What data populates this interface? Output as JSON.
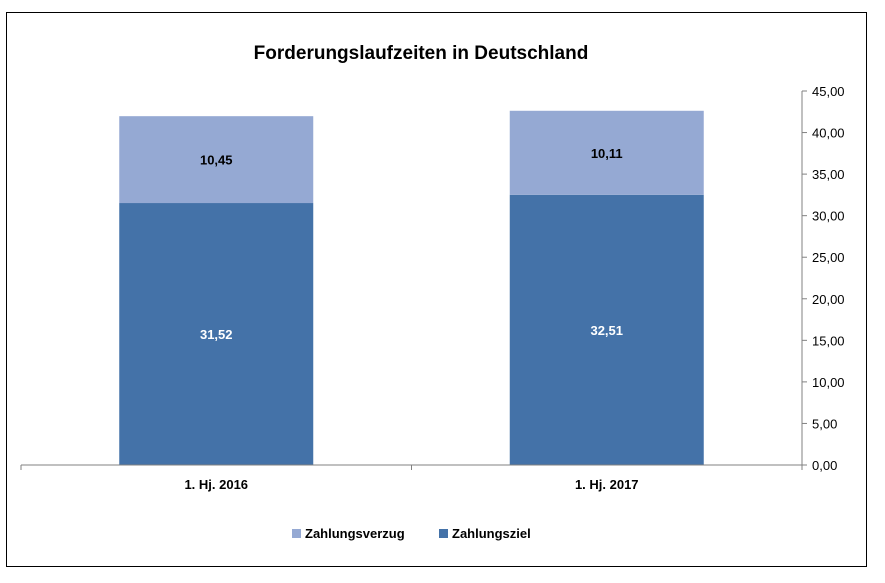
{
  "chart_data": {
    "type": "bar",
    "stacked": true,
    "title": "Forderungslaufzeiten in Deutschland",
    "categories": [
      "1. Hj. 2016",
      "1. Hj. 2017"
    ],
    "series": [
      {
        "name": "Zahlungsziel",
        "values": [
          31.52,
          32.51
        ],
        "labels": [
          "31,52",
          "32,51"
        ],
        "color": "#4472a8",
        "label_color": "#ffffff"
      },
      {
        "name": "Zahlungsverzug",
        "values": [
          10.45,
          10.11
        ],
        "labels": [
          "10,45",
          "10,11"
        ],
        "color": "#95a9d3",
        "label_color": "#000000"
      }
    ],
    "ylim": [
      0,
      45
    ],
    "yticks": [
      0,
      5,
      10,
      15,
      20,
      25,
      30,
      35,
      40,
      45
    ],
    "ytick_labels": [
      "0,00",
      "5,00",
      "10,00",
      "15,00",
      "20,00",
      "25,00",
      "30,00",
      "35,00",
      "40,00",
      "45,00"
    ],
    "y_axis_side": "right",
    "grid": false,
    "legend": {
      "position": "bottom",
      "order": [
        "Zahlungsverzug",
        "Zahlungsziel"
      ]
    }
  }
}
